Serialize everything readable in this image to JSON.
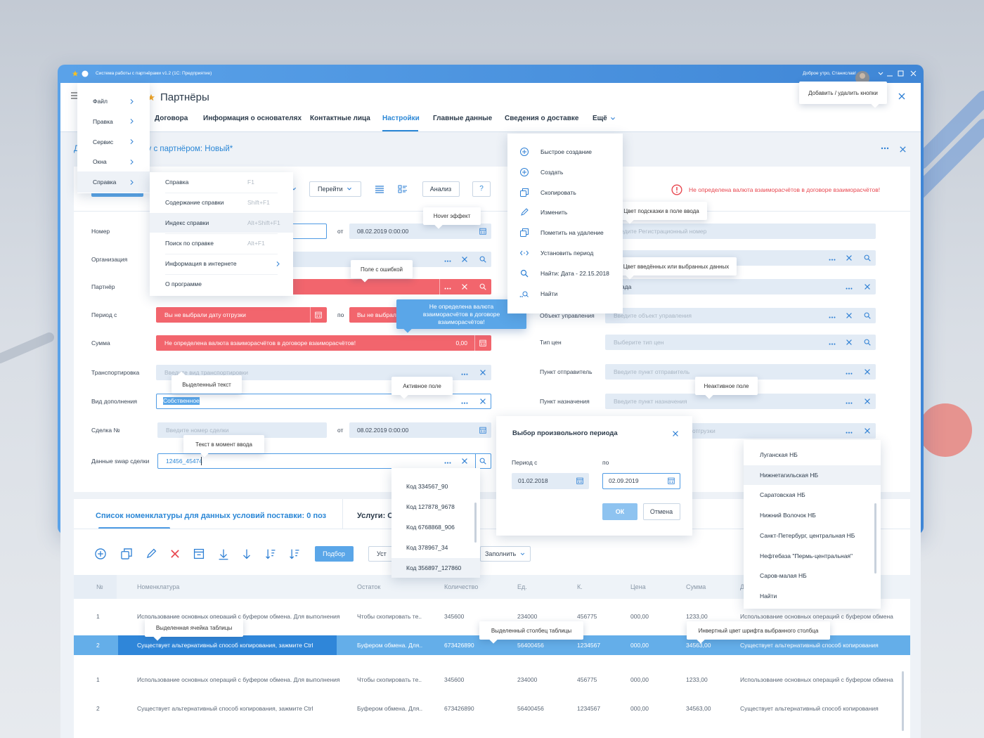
{
  "title_bar": {
    "app_title": "Система работы с партнёрами v1.2 (1С: Предприятие)",
    "greeting": "Доброе утро, Станислав!"
  },
  "header": {
    "title": "Партнёры",
    "tabs": [
      "Договора",
      "Информация о основателях",
      "Контактные лица",
      "Настройки",
      "Главные данные",
      "Сведения о доставке",
      "Ещё"
    ],
    "active_tab": 3,
    "subtitle": "Документ к договору с партнёром: Новый*"
  },
  "main_menu": {
    "items": [
      "Файл",
      "Правка",
      "Сервис",
      "Окна",
      "Справка"
    ],
    "active": 4
  },
  "help_menu": {
    "items": [
      {
        "label": "Справка",
        "shortcut": "F1"
      },
      {
        "label": "Содержание справки",
        "shortcut": "Shift+F1"
      },
      {
        "label": "Индекс справки",
        "shortcut": "Alt+Shift+F1"
      },
      {
        "label": "Поиск по справке",
        "shortcut": "Alt+F1"
      },
      {
        "label": "Информация в интернете",
        "submenu": true
      },
      {
        "label": "О программе"
      }
    ],
    "hovered": 2
  },
  "toolbar": {
    "goto": "Перейти",
    "analysis": "Анализ",
    "help": "?",
    "error": "Не определена  валюта взаиморасчётов в договоре взаиморасчётов!"
  },
  "form": {
    "labels_left": [
      "Номер",
      "Организация",
      "Партнёр",
      "Период с",
      "Сумма",
      "Транспортировка",
      "Вид дополнения",
      "Сделка №",
      "Данные swap сделки"
    ],
    "labels_right": [
      "Объект управления",
      "Тип цен",
      "Пункт отправитель",
      "Пункт назначения"
    ],
    "from_label": "от",
    "to_label": "по",
    "number_date": "08.02.2019 0:00:00",
    "period_from_error": "Вы не выбрали дату отгрузки",
    "period_to_error": "Вы не выбрали",
    "sum_error": "Не определена  валюта взаиморасчётов в договоре взаиморасчётов!",
    "sum_value": "0,00",
    "transport_placeholder": "Введите вид транспортировки",
    "addition_type": "Собственное",
    "deal_placeholder": "Введите номер сделки",
    "deal_date": "08.02.2019 0:00:00",
    "swap_data": "12456_45474",
    "right_texts": [
      "Введите Регистрационный номер",
      "ада",
      "Введите объект управления",
      "Выберите тип цен",
      "Введите пункт отправитель",
      "Введите пункт назначения",
      "отгрузки"
    ]
  },
  "actions_menu": [
    "Быстрое создание",
    "Создать",
    "Скопировать",
    "Изменить",
    "Пометить на удаление",
    "Установить период",
    "Найти: Дата - 22.15.2018",
    "Найти"
  ],
  "period_dialog": {
    "title": "Выбор произвольного периода",
    "from_label": "Период с",
    "to_label": "по",
    "from": "01.02.2018",
    "to": "02.09.2019",
    "ok": "ОК",
    "cancel": "Отмена"
  },
  "code_list": {
    "items": [
      "Код 334567_90",
      "Код 127878_9678",
      "Код 6768868_906",
      "Код 378967_34",
      "Код 356897_127860"
    ],
    "hovered": 4
  },
  "location_list": {
    "items": [
      "Луганская НБ",
      "Нижнетагильская НБ",
      "Саратовская НБ",
      "Нижний Волочок НБ",
      "Санкт-Петербург, центральная НБ",
      "Нефтебаза \"Пермь-центральная\"",
      "Саров-малая НБ",
      "Найти"
    ],
    "hovered": 1
  },
  "nomenclature": {
    "tab": "Список номенклатуры для данных условий поставки: 0 поз",
    "services_tab": "Услуги: С",
    "select_button": "Подбор",
    "set_button": "Уст",
    "fill_button": "Заполнить"
  },
  "table": {
    "columns": [
      "№",
      "Номенклатура",
      "Остаток",
      "Количество",
      "Ед.",
      "К.",
      "Цена",
      "Сумма",
      "Д"
    ],
    "rows": [
      [
        "1",
        "Использование основных операций с буфером обмена. Для выполнения",
        "Чтобы скопировать те..",
        "345600",
        "234000",
        "456775",
        "000,00",
        "1233,00",
        "Использование основных операций с буфером обмена"
      ],
      [
        "2",
        "Существует альтернативный способ копирования, зажмите Ctrl",
        "Буфером обмена. Для..",
        "673426890",
        "56400456",
        "1234567",
        "000,00",
        "34563,00",
        "Существует альтернативный способ копирования"
      ],
      [
        "1",
        "Использование основных операций с буфером обмена. Для выполнения",
        "Чтобы скопировать те..",
        "345600",
        "234000",
        "456775",
        "000,00",
        "1233,00",
        "Использование основных операций с буфером обмена"
      ],
      [
        "2",
        "Существует альтернативный способ копирования, зажмите Ctrl",
        "Буфером обмена. Для..",
        "673426890",
        "56400456",
        "1234567",
        "000,00",
        "34563,00",
        "Существует альтернативный способ копирования"
      ]
    ],
    "selected_row": 1,
    "selected_cell": 1
  },
  "annotations": {
    "add_remove_buttons": "Добавить / удалить кнопки",
    "hover": "Hover эффект",
    "error_field": "Поле с ошибкой",
    "hint_color": "Цвет подсказки в поле ввода",
    "data_color": "Цвет введённых или выбранных данных",
    "selected_text": "Выделенный текст",
    "active_field": "Активное поле",
    "inactive_field": "Неактивное поле",
    "typing_text": "Текст в момент ввода",
    "selected_cell": "Выделенная ячейка таблицы",
    "selected_column": "Выделенный столбец таблицы",
    "inverse_font": "Инвертный цвет шрифта выбранного столбца",
    "currency_error": "Не определена валюта взаиморасчётов в договоре взаиморасчётов!"
  }
}
